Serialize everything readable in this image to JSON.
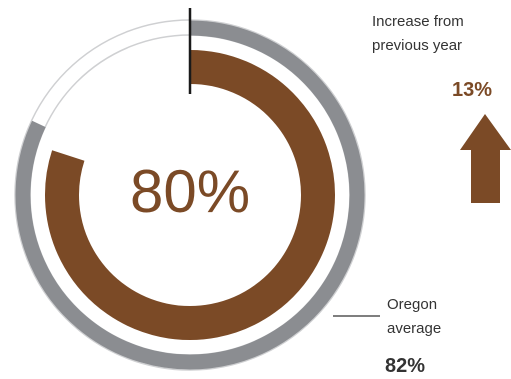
{
  "chart_data": {
    "type": "pie",
    "series": [
      {
        "name": "Oregon average",
        "values": [
          82
        ]
      },
      {
        "values": [
          80
        ]
      }
    ],
    "center_label": "80%",
    "increase": {
      "label_line1": "Increase from",
      "label_line2": "previous year",
      "value": 13,
      "value_label": "13%"
    },
    "oregon": {
      "label_line1": "Oregon",
      "label_line2": "average",
      "value_label": "82%"
    }
  },
  "colors": {
    "brown": "#7b4a26",
    "gray": "#8b8d91",
    "light_gray": "#cfd0d2",
    "tick": "#1a1a1a",
    "text": "#333333"
  },
  "icons": {
    "arrow": "arrow-up-icon"
  }
}
